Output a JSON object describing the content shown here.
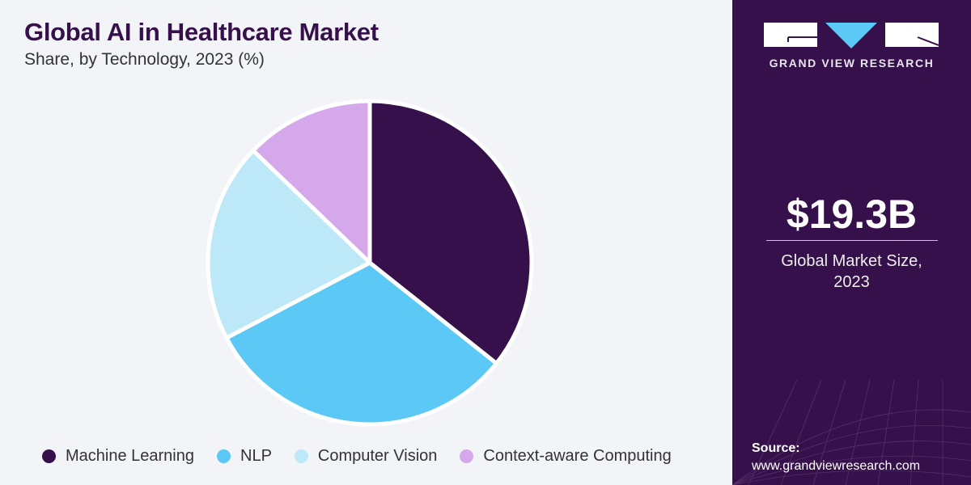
{
  "header": {
    "title": "Global AI in Healthcare Market",
    "subtitle": "Share, by Technology, 2023 (%)"
  },
  "chart_data": {
    "type": "pie",
    "title": "Global AI in Healthcare Market",
    "subtitle": "Share, by Technology, 2023 (%)",
    "categories": [
      "Machine Learning",
      "NLP",
      "Computer Vision",
      "Context-aware Computing"
    ],
    "values": [
      35.7,
      31.6,
      19.9,
      12.8
    ],
    "colors": [
      "#36104a",
      "#5bc8f5",
      "#bde8f8",
      "#d4a8ea"
    ],
    "legend_position": "bottom"
  },
  "sidebar": {
    "brand": "GRAND VIEW RESEARCH",
    "market_size": "$19.3B",
    "market_caption_1": "Global Market Size,",
    "market_caption_2": "2023",
    "source_label": "Source:",
    "source_url": "www.grandviewresearch.com",
    "bg_color": "#36104a"
  }
}
